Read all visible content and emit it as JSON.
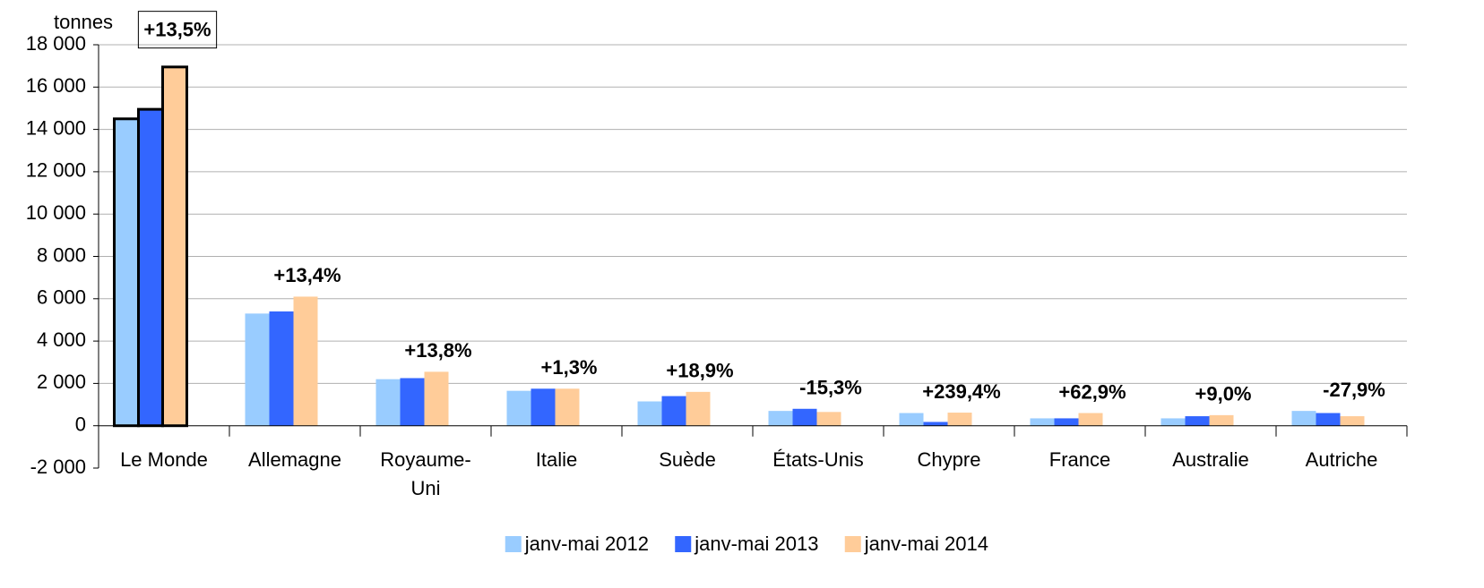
{
  "chart_data": {
    "type": "bar",
    "y_label": "tonnes",
    "categories": [
      "Le Monde",
      "Allemagne",
      "Royaume-Uni",
      "Italie",
      "Suède",
      "États-Unis",
      "Chypre",
      "France",
      "Australie",
      "Autriche"
    ],
    "series": [
      {
        "name": "janv-mai 2012",
        "color": "#99ccff",
        "values": [
          14500,
          5300,
          2200,
          1650,
          1150,
          700,
          600,
          350,
          350,
          700
        ]
      },
      {
        "name": "janv-mai 2013",
        "color": "#3366ff",
        "values": [
          14950,
          5400,
          2250,
          1750,
          1400,
          800,
          180,
          350,
          450,
          600
        ]
      },
      {
        "name": "janv-mai 2014",
        "color": "#ffcc99",
        "values": [
          16950,
          6100,
          2550,
          1750,
          1600,
          650,
          620,
          600,
          500,
          450
        ]
      }
    ],
    "annotations": [
      {
        "text": "+13,5%",
        "color": "#000000",
        "boxed": true
      },
      {
        "text": "+13,4%",
        "color": "#000000"
      },
      {
        "text": "+13,8%",
        "color": "#000000"
      },
      {
        "text": "+1,3%",
        "color": "#000000"
      },
      {
        "text": "+18,9%",
        "color": "#000000"
      },
      {
        "text": "-15,3%",
        "color": "#ff0000"
      },
      {
        "text": "+239,4%",
        "color": "#000000"
      },
      {
        "text": "+62,9%",
        "color": "#000000"
      },
      {
        "text": "+9,0%",
        "color": "#000000"
      },
      {
        "text": "-27,9%",
        "color": "#ff0000"
      }
    ],
    "ylim": [
      -2000,
      18000
    ],
    "yticks": [
      {
        "value": -2000,
        "label": "-2 000"
      },
      0,
      {
        "value": 2000,
        "label": "2 000"
      },
      {
        "value": 4000,
        "label": "4 000"
      },
      {
        "value": 6000,
        "label": "6 000"
      },
      {
        "value": 8000,
        "label": "8 000"
      },
      {
        "value": 10000,
        "label": "10 000"
      },
      {
        "value": 12000,
        "label": "12 000"
      },
      {
        "value": 14000,
        "label": "14 000"
      },
      {
        "value": 16000,
        "label": "16 000"
      },
      {
        "value": 18000,
        "label": "18 000"
      }
    ],
    "grid": true,
    "legend": "bottom"
  }
}
